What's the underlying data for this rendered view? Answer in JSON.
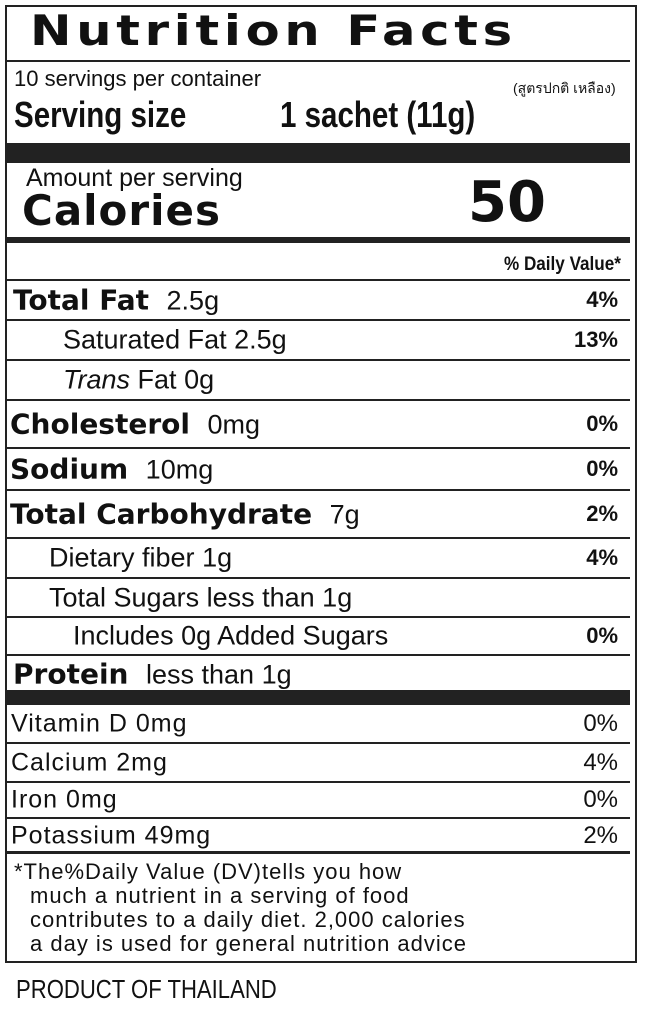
{
  "header": {
    "title": "Nutrition Facts",
    "servings": "10 servings per container",
    "variant": "(สูตรปกติ เหลือง)",
    "serving_size_label": "Serving size",
    "serving_size": "1 sachet (11g)"
  },
  "calories": {
    "amount_label": "Amount per serving",
    "label": "Calories",
    "value": "50"
  },
  "dv_header": "% Daily Value*",
  "nutrients": [
    {
      "name": "Total Fat",
      "amount": "2.5g",
      "dv": "4%"
    },
    {
      "name": "Saturated Fat",
      "amount": "2.5g",
      "dv": "13%"
    },
    {
      "name_italic": "Trans",
      "name": "Fat",
      "amount": "0g"
    },
    {
      "name": "Cholesterol",
      "amount": "0mg",
      "dv": "0%"
    },
    {
      "name": "Sodium",
      "amount": "10mg",
      "dv": "0%"
    },
    {
      "name": "Total Carbohydrate",
      "amount": "7g",
      "dv": "2%"
    },
    {
      "name": "Dietary fiber",
      "amount": "1g",
      "dv": "4%"
    },
    {
      "name": "Total Sugars",
      "amount": "less than 1g"
    },
    {
      "name": "Includes 0g Added Sugars",
      "dv": "0%"
    },
    {
      "name": "Protein",
      "amount": "less than 1g"
    }
  ],
  "vitamins": [
    {
      "name": "Vitamin D",
      "amount": "0mg",
      "dv": "0%"
    },
    {
      "name": "Calcium",
      "amount": "2mg",
      "dv": "4%"
    },
    {
      "name": "Iron",
      "amount": "0mg",
      "dv": "0%"
    },
    {
      "name": "Potassium",
      "amount": "49mg",
      "dv": "2%"
    }
  ],
  "footnote": [
    "*The%Daily Value (DV)tells you how",
    "much a nutrient in a serving of food",
    "contributes to a daily diet. 2,000 calories",
    "a day is used for general nutrition advice"
  ],
  "origin": "PRODUCT OF THAILAND"
}
